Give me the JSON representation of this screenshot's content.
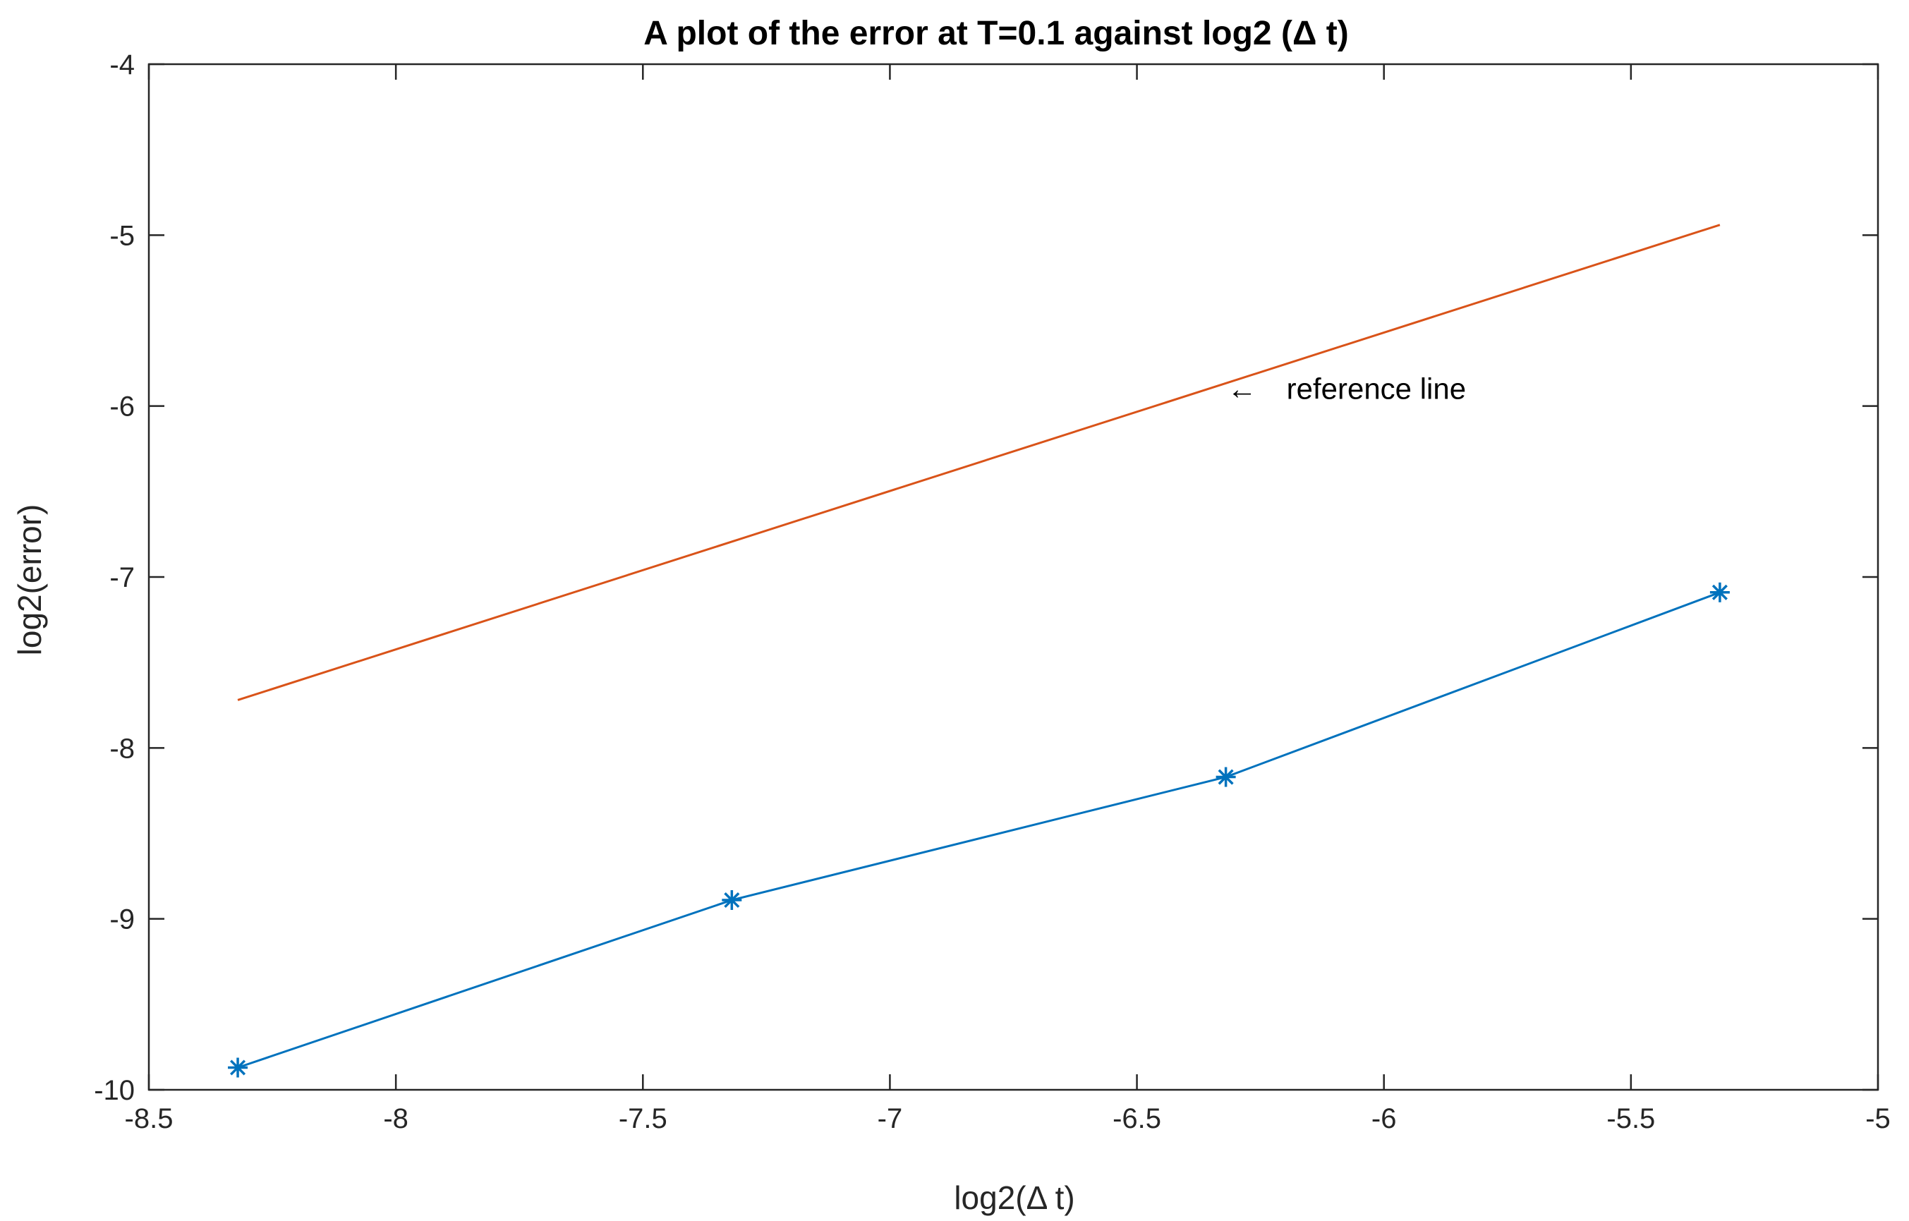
{
  "chart_data": {
    "type": "line",
    "title": "A plot of the error at T=0.1 against log2 (Δ t)",
    "xlabel": "log2(Δ t)",
    "ylabel": "log2(error)",
    "xlim": [
      -8.5,
      -5
    ],
    "ylim": [
      -10,
      -4
    ],
    "xticks": [
      -8.5,
      -8,
      -7.5,
      -7,
      -6.5,
      -6,
      -5.5,
      -5
    ],
    "xtick_labels": [
      "-8.5",
      "-8",
      "-7.5",
      "-7",
      "-6.5",
      "-6",
      "-5.5",
      "-5"
    ],
    "yticks": [
      -10,
      -9,
      -8,
      -7,
      -6,
      -5,
      -4
    ],
    "ytick_labels": [
      "-10",
      "-9",
      "-8",
      "-7",
      "-6",
      "-5",
      "-4"
    ],
    "grid": false,
    "box": true,
    "series": [
      {
        "color": "#0072BD",
        "marker": "asterisk",
        "x": [
          -8.32,
          -7.32,
          -6.32,
          -5.32
        ],
        "y": [
          -9.87,
          -8.89,
          -8.17,
          -7.09
        ]
      },
      {
        "color": "#D95319",
        "marker": "none",
        "x": [
          -8.32,
          -5.32
        ],
        "y": [
          -7.72,
          -4.94
        ]
      }
    ],
    "annotations": [
      {
        "arrow": "←",
        "text": "reference line",
        "x": -6.32,
        "y": -5.9
      }
    ]
  }
}
